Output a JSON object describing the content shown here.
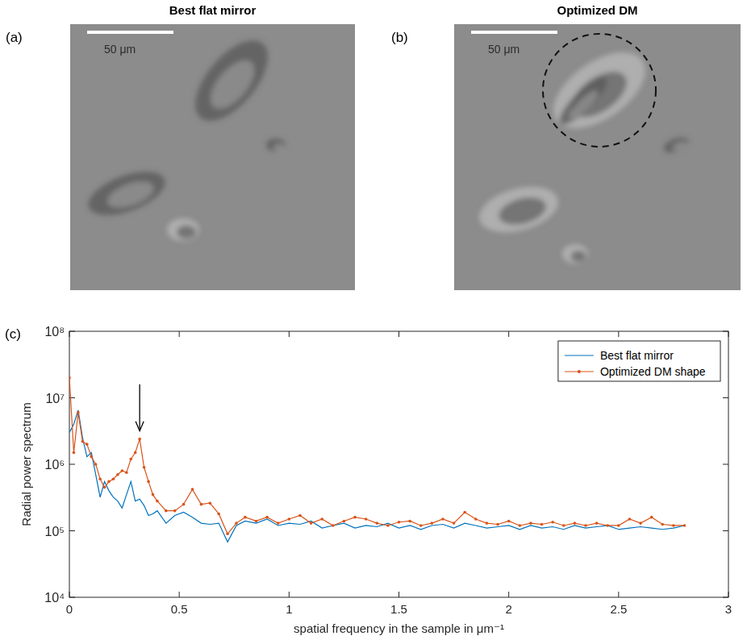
{
  "panels": [
    {
      "letter": "(a)",
      "title": "Best flat mirror",
      "scale_bar": "50 μm"
    },
    {
      "letter": "(b)",
      "title": "Optimized DM",
      "scale_bar": "50 μm"
    },
    {
      "letter": "(c)"
    }
  ],
  "chart_data": {
    "type": "line",
    "x_label": "spatial frequency in the sample in μm⁻¹",
    "y_label": "Radial power spectrum",
    "log": "y",
    "grid": false,
    "legend": "northeast",
    "xlim": [
      0,
      3
    ],
    "xticks": [
      0,
      0.5,
      1,
      1.5,
      2,
      2.5,
      3
    ],
    "ylim": [
      10000.0,
      100000000.0
    ],
    "yticks": [
      {
        "value": 10000.0,
        "label": "10⁴"
      },
      {
        "value": 100000.0,
        "label": "10⁵"
      },
      {
        "value": 1000000.0,
        "label": "10⁶"
      },
      {
        "value": 10000000.0,
        "label": "10⁷"
      },
      {
        "value": 100000000.0,
        "label": "10⁸"
      }
    ],
    "x": [
      0,
      0.02,
      0.04,
      0.06,
      0.08,
      0.1,
      0.12,
      0.14,
      0.16,
      0.18,
      0.2,
      0.22,
      0.24,
      0.26,
      0.28,
      0.3,
      0.32,
      0.34,
      0.36,
      0.38,
      0.4,
      0.44,
      0.48,
      0.52,
      0.56,
      0.6,
      0.64,
      0.68,
      0.72,
      0.76,
      0.8,
      0.85,
      0.9,
      0.95,
      1,
      1.05,
      1.1,
      1.15,
      1.2,
      1.25,
      1.3,
      1.35,
      1.4,
      1.45,
      1.5,
      1.55,
      1.6,
      1.65,
      1.7,
      1.75,
      1.8,
      1.85,
      1.9,
      1.95,
      2,
      2.05,
      2.1,
      2.15,
      2.2,
      2.25,
      2.3,
      2.35,
      2.4,
      2.45,
      2.5,
      2.55,
      2.6,
      2.65,
      2.7,
      2.75,
      2.8
    ],
    "series": [
      {
        "name": "Best flat mirror",
        "color": "#0072bd",
        "marker": "none",
        "line_style": "solid",
        "values": [
          3000000.0,
          4000000.0,
          6500000.0,
          2500000.0,
          1300000.0,
          1500000.0,
          700000.0,
          320000.0,
          550000.0,
          400000.0,
          320000.0,
          280000.0,
          220000.0,
          350000.0,
          550000.0,
          280000.0,
          300000.0,
          240000.0,
          170000.0,
          180000.0,
          200000.0,
          130000.0,
          170000.0,
          190000.0,
          160000.0,
          130000.0,
          125000.0,
          130000.0,
          68000.0,
          120000.0,
          140000.0,
          130000.0,
          150000.0,
          120000.0,
          130000.0,
          125000.0,
          140000.0,
          110000.0,
          120000.0,
          130000.0,
          110000.0,
          120000.0,
          115000.0,
          130000.0,
          110000.0,
          120000.0,
          105000.0,
          120000.0,
          125000.0,
          110000.0,
          130000.0,
          120000.0,
          110000.0,
          115000.0,
          120000.0,
          105000.0,
          120000.0,
          110000.0,
          115000.0,
          105000.0,
          120000.0,
          110000.0,
          115000.0,
          120000.0,
          105000.0,
          110000.0,
          115000.0,
          110000.0,
          105000.0,
          110000.0,
          120000.0
        ]
      },
      {
        "name": "Optimized DM shape",
        "color": "#d95319",
        "marker": "dot",
        "line_style": "solid",
        "values": [
          20000000.0,
          1500000.0,
          6000000.0,
          2200000.0,
          2000000.0,
          1300000.0,
          1000000.0,
          600000.0,
          450000.0,
          550000.0,
          600000.0,
          700000.0,
          800000.0,
          750000.0,
          1200000.0,
          1500000.0,
          2400000.0,
          900000.0,
          550000.0,
          350000.0,
          280000.0,
          200000.0,
          200000.0,
          250000.0,
          420000.0,
          250000.0,
          260000.0,
          180000.0,
          90000.0,
          130000.0,
          160000.0,
          140000.0,
          160000.0,
          130000.0,
          150000.0,
          170000.0,
          130000.0,
          150000.0,
          120000.0,
          140000.0,
          160000.0,
          150000.0,
          130000.0,
          120000.0,
          135000.0,
          140000.0,
          120000.0,
          130000.0,
          150000.0,
          130000.0,
          190000.0,
          150000.0,
          130000.0,
          125000.0,
          140000.0,
          120000.0,
          130000.0,
          125000.0,
          135000.0,
          120000.0,
          130000.0,
          120000.0,
          130000.0,
          120000.0,
          120000.0,
          150000.0,
          130000.0,
          160000.0,
          125000.0,
          120000.0,
          120000.0
        ]
      }
    ],
    "annotations": [
      {
        "type": "arrow",
        "x": 0.32,
        "y": 2400000.0
      }
    ]
  }
}
